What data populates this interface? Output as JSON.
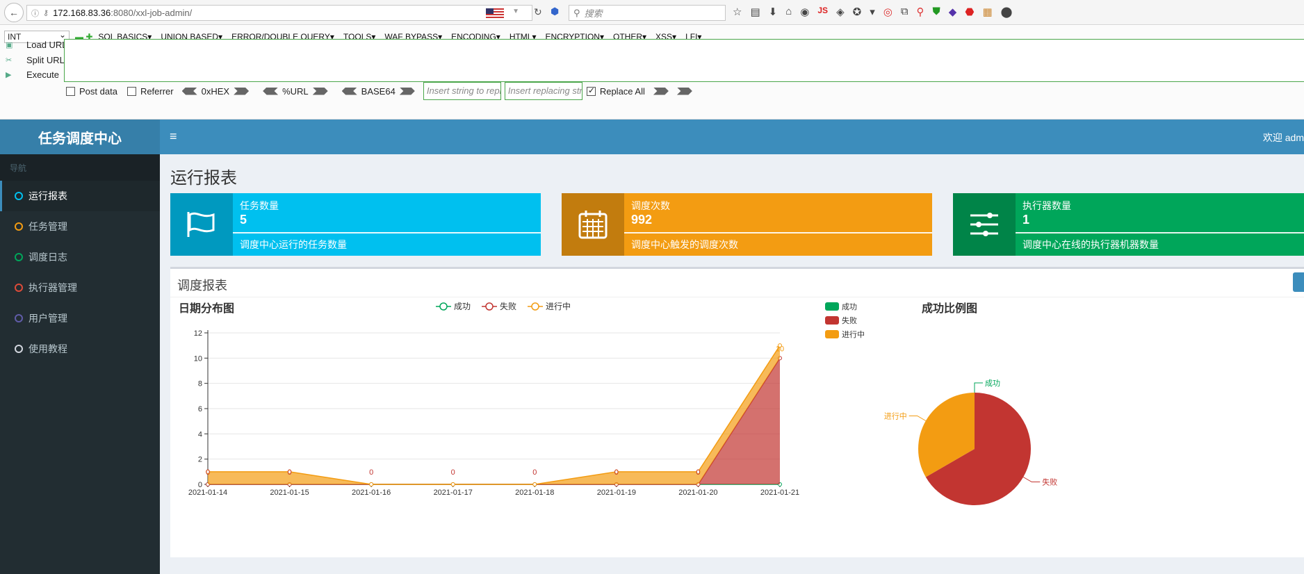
{
  "browser": {
    "url_host": "172.168.83.36",
    "url_rest": ":8080/xxl-job-admin/",
    "search_placeholder": "搜索",
    "js_label": "JS"
  },
  "hackbar": {
    "encoding_select": "INT",
    "menu": [
      "SQL BASICS▾",
      "UNION BASED▾",
      "ERROR/DOUBLE QUERY▾",
      "TOOLS▾",
      "WAF BYPASS▾",
      "ENCODING▾",
      "HTML▾",
      "ENCRYPTION▾",
      "OTHER▾",
      "XSS▾",
      "LFI▾"
    ],
    "load_url": "Load URL",
    "split_url": "Split URL",
    "execute": "Execute",
    "post_data": "Post data",
    "referrer": "Referrer",
    "hex": "0xHEX",
    "url_enc": "%URL",
    "base64": "BASE64",
    "replace_placeholder": "Insert string to replace",
    "replacing_placeholder": "Insert replacing string",
    "replace_all": "Replace All"
  },
  "app": {
    "logo": "任务调度中心",
    "welcome": "欢迎 adm",
    "nav_header": "导航",
    "nav": [
      {
        "label": "运行报表",
        "color": "#00c0ef"
      },
      {
        "label": "任务管理",
        "color": "#f39c12"
      },
      {
        "label": "调度日志",
        "color": "#00a65a"
      },
      {
        "label": "执行器管理",
        "color": "#dd4b39"
      },
      {
        "label": "用户管理",
        "color": "#605ca8"
      },
      {
        "label": "使用教程",
        "color": "#d2d6de"
      }
    ],
    "page_title": "运行报表",
    "info_boxes": [
      {
        "title": "任务数量",
        "number": "5",
        "desc": "调度中心运行的任务数量",
        "color": "#00c0ef"
      },
      {
        "title": "调度次数",
        "number": "992",
        "desc": "调度中心触发的调度次数",
        "color": "#f39c12"
      },
      {
        "title": "执行器数量",
        "number": "1",
        "desc": "调度中心在线的执行器机器数量",
        "color": "#00a65a"
      }
    ],
    "report_title": "调度报表"
  },
  "chart_data": [
    {
      "type": "area",
      "title": "日期分布图",
      "categories": [
        "2021-01-14",
        "2021-01-15",
        "2021-01-16",
        "2021-01-17",
        "2021-01-18",
        "2021-01-19",
        "2021-01-20",
        "2021-01-21"
      ],
      "ylim": [
        0,
        12
      ],
      "yticks": [
        0,
        2,
        4,
        6,
        8,
        10,
        12
      ],
      "stacked": true,
      "legend_position": "top-center",
      "series": [
        {
          "name": "成功",
          "color": "#00a65a",
          "values": [
            0,
            0,
            0,
            0,
            0,
            0,
            0,
            0
          ]
        },
        {
          "name": "失败",
          "color": "#c23531",
          "values": [
            0,
            0,
            0,
            0,
            0,
            0,
            0,
            10
          ]
        },
        {
          "name": "进行中",
          "color": "#f39c12",
          "values": [
            1,
            1,
            0,
            0,
            0,
            1,
            1,
            1
          ]
        }
      ],
      "data_labels": [
        "0",
        "0",
        "0",
        "0",
        "0",
        "0",
        "0",
        "10"
      ]
    },
    {
      "type": "pie",
      "title": "成功比例图",
      "legend_position": "top-left",
      "slices": [
        {
          "name": "成功",
          "value": 0,
          "color": "#00a65a"
        },
        {
          "name": "失败",
          "value": 10,
          "color": "#c23531"
        },
        {
          "name": "进行中",
          "value": 5,
          "color": "#f39c12"
        }
      ]
    }
  ]
}
